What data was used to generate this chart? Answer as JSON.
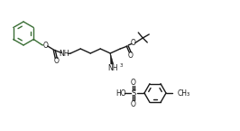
{
  "bg_color": "#ffffff",
  "bond_color": "#1a1a1a",
  "green_color": "#3a6e35",
  "figsize": [
    2.66,
    1.45
  ],
  "dpi": 100,
  "lw": 1.0,
  "xlim": [
    0,
    266
  ],
  "ylim": [
    0,
    145
  ]
}
